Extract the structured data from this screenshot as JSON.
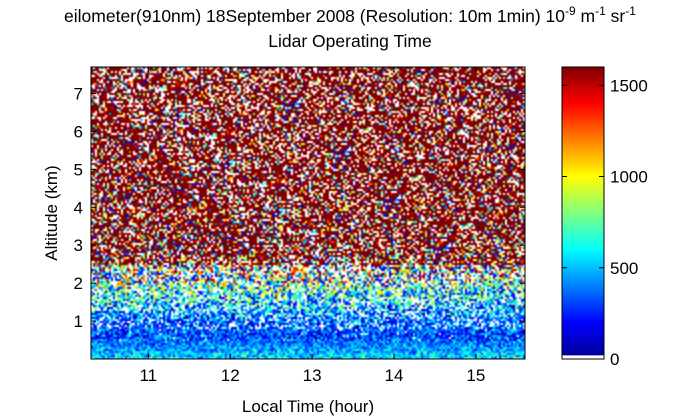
{
  "chart_data": {
    "type": "heatmap",
    "title": "eilometer(910nm) 18September 2008 (Resolution: 10m 1min) 10^-9 m^-1 sr^-1",
    "title_parts": {
      "main": "eilometer(910nm) 18September 2008 (Resolution: 10m 1min) 10",
      "exp1": "-9",
      "mid": " m",
      "exp2": "-1",
      "mid2": " sr",
      "exp3": "-1"
    },
    "subtitle": "Lidar Operating Time",
    "xlabel": "Local Time (hour)",
    "ylabel": "Altitude (km)",
    "xlim": [
      10.3,
      15.6
    ],
    "ylim": [
      0,
      7.7
    ],
    "xticks": [
      "11",
      "12",
      "13",
      "14",
      "15"
    ],
    "xtick_values": [
      11,
      12,
      13,
      14,
      15
    ],
    "yticks": [
      "1",
      "2",
      "3",
      "4",
      "5",
      "6",
      "7"
    ],
    "ytick_values": [
      1,
      2,
      3,
      4,
      5,
      6,
      7
    ],
    "colorbar": {
      "range": [
        0,
        1600
      ],
      "ticks": [
        "0",
        "500",
        "1000",
        "1500"
      ],
      "tick_values": [
        0,
        500,
        1000,
        1500
      ],
      "colormap": "jet"
    },
    "profile": {
      "altitudes_km": [
        0.0,
        0.3,
        0.6,
        1.0,
        1.5,
        2.0,
        2.5,
        3.0,
        4.0,
        5.0,
        6.0,
        7.7
      ],
      "mean_values": [
        550,
        450,
        300,
        350,
        550,
        700,
        850,
        1000,
        1200,
        1350,
        1400,
        1450
      ]
    }
  },
  "colors": {
    "colormap_jet": [
      "#00008f",
      "#0000ff",
      "#00ffff",
      "#ffff00",
      "#ff0000",
      "#800000"
    ],
    "zero_value": "#ffffff"
  }
}
